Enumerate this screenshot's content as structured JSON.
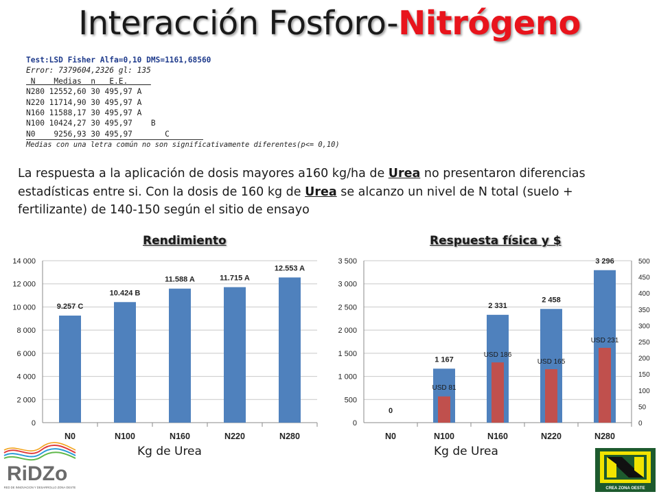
{
  "slide": {
    "title_part1": "Interacción Fosforo-",
    "title_part2": "Nitrógeno"
  },
  "stats": {
    "header": "Test:LSD Fisher Alfa=0,10 DMS=1161,68560",
    "error": "Error: 7379604,2326 gl: 135",
    "columns": " N    Medias  n   E.E.     ",
    "rows": [
      "N280 12552,60 30 495,97 A",
      "N220 11714,90 30 495,97 A",
      "N160 11588,17 30 495,97 A",
      "N100 10424,27 30 495,97    B",
      "N0    9256,93 30 495,97       C"
    ],
    "footnote": "Medias con una letra común no son significativamente diferentes(p<= 0,10)"
  },
  "paragraph": {
    "part1": "La respuesta a la aplicación de dosis mayores a160 kg/ha de ",
    "urea1": "Urea",
    "part2": " no presentaron diferencias estadísticas entre si. Con la dosis de 160 kg de ",
    "urea2": "Urea",
    "part3": " se alcanzo un nivel de N total (suelo + fertilizante)  de 140-150 según el sitio de ensayo"
  },
  "colors": {
    "blue_bar": "#4f81bd",
    "red_bar": "#c0504d",
    "title_accent": "#e8141c",
    "stats_header": "#1f3b8c"
  },
  "chart_data": [
    {
      "type": "bar",
      "title": "Rendimiento",
      "xlabel": "Kg de Urea",
      "ylabel": "",
      "categories": [
        "N0",
        "N100",
        "N160",
        "N220",
        "N280"
      ],
      "values": [
        9257,
        10424,
        11588,
        11715,
        12553
      ],
      "data_labels": [
        "9.257 C",
        "10.424 B",
        "11.588 A",
        "11.715 A",
        "12.553 A"
      ],
      "ylim": [
        0,
        14000
      ],
      "yticks": [
        "0",
        "2 000",
        "4 000",
        "6 000",
        "8 000",
        "10 000",
        "12 000",
        "14 000"
      ],
      "grid": true,
      "legend": "none"
    },
    {
      "type": "bar",
      "title": "Respuesta física y $",
      "xlabel": "Kg de Urea",
      "ylabel": "",
      "categories": [
        "N0",
        "N100",
        "N160",
        "N220",
        "N280"
      ],
      "series": [
        {
          "values": [
            0,
            1167,
            2331,
            2458,
            3296
          ],
          "labels": [
            "0",
            "1 167",
            "2 331",
            "2 458",
            "3 296"
          ],
          "axis": "left",
          "ylim": [
            0,
            3500
          ],
          "yticks": [
            "0",
            "500",
            "1 000",
            "1 500",
            "2 000",
            "2 500",
            "3 000",
            "3 500"
          ]
        },
        {
          "values": [
            0,
            81,
            186,
            165,
            231
          ],
          "labels": [
            "",
            "USD 81",
            "USD 186",
            "USD 165",
            "USD 231"
          ],
          "axis": "right",
          "ylim": [
            0,
            500
          ],
          "yticks": [
            "0",
            "50",
            "100",
            "150",
            "200",
            "250",
            "300",
            "350",
            "400",
            "450",
            "500"
          ]
        }
      ],
      "grid": true,
      "legend": "none"
    }
  ],
  "logos": {
    "left_name": "RiDZo",
    "left_sub": "RED DE INNOVACION Y DESARROLLO ZONA OESTE",
    "right_name": "CREA ZONA OESTE"
  }
}
